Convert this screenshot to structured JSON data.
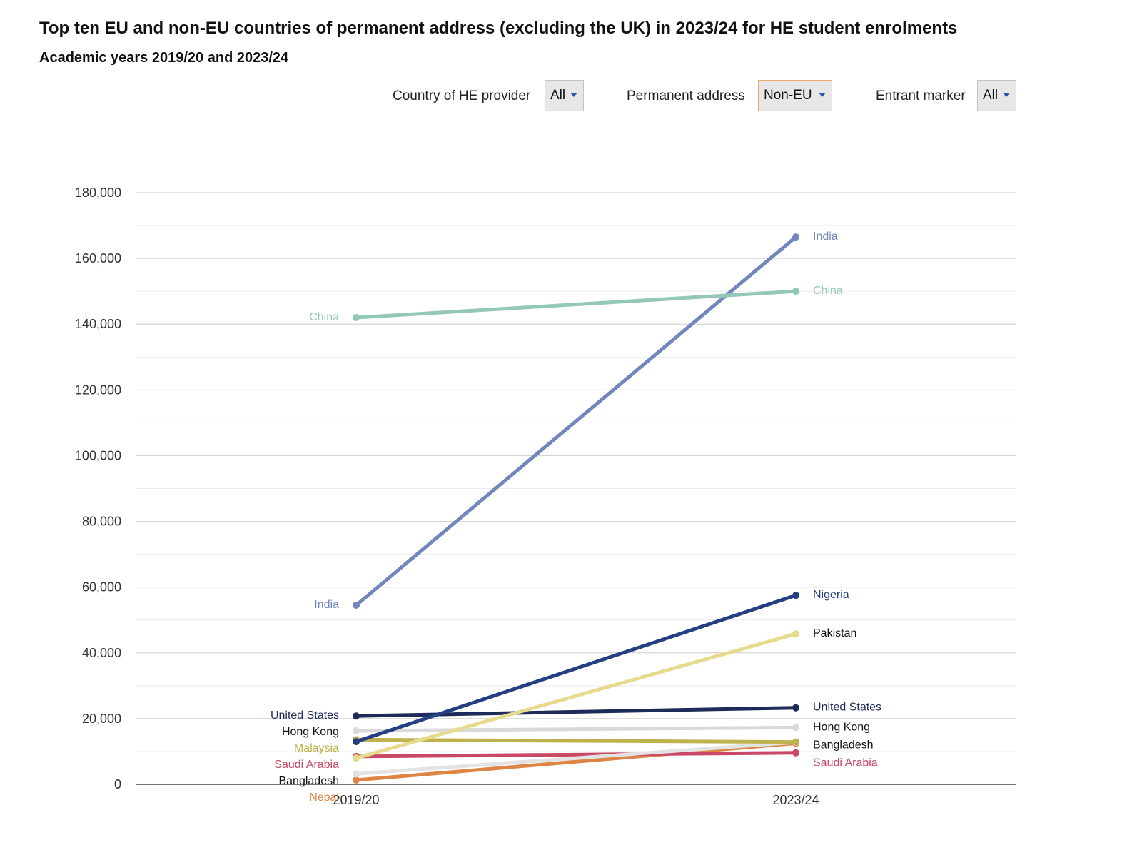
{
  "header": {
    "title": "Top ten EU and non-EU countries of permanent address (excluding the UK) in 2023/24 for HE student enrolments",
    "subtitle": "Academic years 2019/20 and 2023/24"
  },
  "filters": [
    {
      "label": "Country of HE provider",
      "value": "All"
    },
    {
      "label": "Permanent address",
      "value": "Non-EU"
    },
    {
      "label": "Entrant marker",
      "value": "All"
    }
  ],
  "icons": {
    "dropdown": "caret-down-icon"
  },
  "chart_data": {
    "type": "line",
    "title": "Top ten EU and non-EU countries of permanent address (excluding the UK) in 2023/24 for HE student enrolments",
    "subtitle": "Academic years 2019/20 and 2023/24",
    "categories": [
      "2019/20",
      "2023/24"
    ],
    "ylim": [
      0,
      180000
    ],
    "yticks": [
      0,
      20000,
      40000,
      60000,
      80000,
      100000,
      120000,
      140000,
      160000,
      180000
    ],
    "ytick_labels": [
      "0",
      "20,000",
      "40,000",
      "60,000",
      "80,000",
      "100,000",
      "120,000",
      "140,000",
      "160,000",
      "180,000"
    ],
    "grid": true,
    "series": [
      {
        "name": "China",
        "values": [
          142000,
          150000
        ],
        "color": "#93c8b8",
        "start_label": "China",
        "end_label": "China"
      },
      {
        "name": "India",
        "values": [
          54500,
          166500
        ],
        "color": "#7186ba",
        "start_label": "India",
        "end_label": "India"
      },
      {
        "name": "Nigeria",
        "values": [
          13000,
          57500
        ],
        "color": "#243f82",
        "start_label": "",
        "end_label": "Nigeria"
      },
      {
        "name": "Pakistan",
        "values": [
          8000,
          45800
        ],
        "color": "#e6db8c",
        "start_label": "",
        "end_label": "Pakistan"
      },
      {
        "name": "United States",
        "values": [
          20800,
          23300
        ],
        "color": "#1d2b58",
        "start_label": "United States",
        "end_label": "United States"
      },
      {
        "name": "Hong Kong",
        "values": [
          16300,
          17300
        ],
        "color": "#d9d9d9",
        "start_label": "Hong Kong",
        "end_label": "Hong Kong"
      },
      {
        "name": "Malaysia",
        "values": [
          13600,
          12900
        ],
        "color": "#bfb24c",
        "start_label": "Malaysia",
        "end_label": ""
      },
      {
        "name": "Bangladesh",
        "values": [
          3200,
          12800
        ],
        "color": "#e3e3e3",
        "start_label": "Bangladesh",
        "end_label": "Bangladesh"
      },
      {
        "name": "Saudi Arabia",
        "values": [
          8500,
          9600
        ],
        "color": "#c84865",
        "start_label": "Saudi Arabia",
        "end_label": "Saudi Arabia"
      },
      {
        "name": "Nepal",
        "values": [
          1300,
          12500
        ],
        "color": "#de8444",
        "start_label": "Nepal",
        "end_label": ""
      }
    ]
  }
}
